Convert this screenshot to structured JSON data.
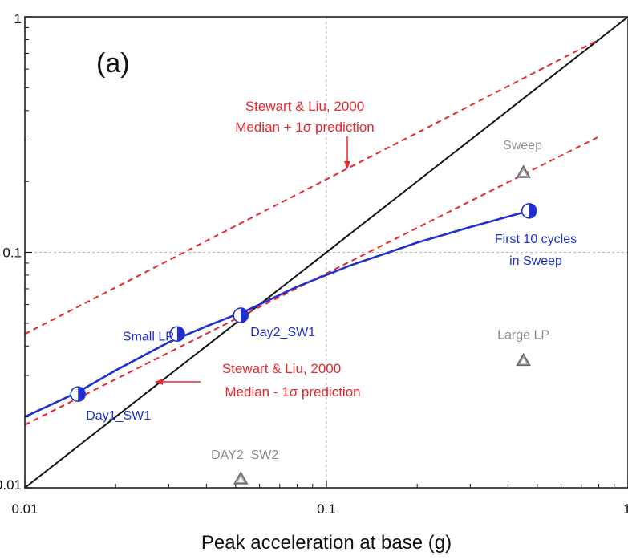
{
  "chart_data": {
    "type": "scatter",
    "panel_label": "(a)",
    "xlabel": "Peak acceleration at base (g)",
    "ylabel": "",
    "xscale": "log",
    "yscale": "log",
    "xlim": [
      0.01,
      1
    ],
    "ylim": [
      0.01,
      1
    ],
    "x_ticks": [
      {
        "value": 0.01,
        "label": "0.01"
      },
      {
        "value": 0.1,
        "label": "0.1"
      },
      {
        "value": 1,
        "label": "1"
      }
    ],
    "y_ticks": [
      {
        "value": 0.01,
        "label": "0.01"
      },
      {
        "value": 0.1,
        "label": "0.1"
      },
      {
        "value": 1,
        "label": "1"
      }
    ],
    "grid": "dotted at 0.1",
    "lines": [
      {
        "kind": "one_to_one",
        "color": "#111111",
        "style": "solid",
        "points": [
          [
            0.01,
            0.01
          ],
          [
            1,
            1
          ]
        ]
      },
      {
        "kind": "stewart_liu_plus",
        "color": "#e8262b",
        "style": "dashed",
        "points": [
          [
            0.01,
            0.045
          ],
          [
            0.8,
            0.8
          ]
        ]
      },
      {
        "kind": "stewart_liu_minus",
        "color": "#e8262b",
        "style": "dashed",
        "points": [
          [
            0.01,
            0.0185
          ],
          [
            0.8,
            0.31
          ]
        ]
      },
      {
        "kind": "first_10_cycles",
        "color": "#1f2fd0",
        "style": "solid",
        "points": [
          [
            0.01,
            0.02
          ],
          [
            0.015,
            0.0255
          ],
          [
            0.02,
            0.0315
          ],
          [
            0.03,
            0.0415
          ],
          [
            0.04,
            0.0485
          ],
          [
            0.055,
            0.057
          ],
          [
            0.08,
            0.0715
          ],
          [
            0.12,
            0.088
          ],
          [
            0.2,
            0.11
          ],
          [
            0.3,
            0.128
          ],
          [
            0.47,
            0.15
          ]
        ]
      }
    ],
    "series": [
      {
        "marker": "half-filled-circle",
        "color": "#1f2fd0",
        "points": [
          {
            "x": 0.015,
            "y": 0.025,
            "label": "Day1_SW1"
          },
          {
            "x": 0.032,
            "y": 0.045,
            "label": "Small LP"
          },
          {
            "x": 0.052,
            "y": 0.054,
            "label": "Day2_SW1"
          }
        ]
      },
      {
        "marker": "half-filled-circle",
        "color": "#1f2fd0",
        "points": [
          {
            "x": 0.47,
            "y": 0.15,
            "label": ""
          }
        ]
      },
      {
        "marker": "triangle",
        "color": "#8c8c8c",
        "points": [
          {
            "x": 0.45,
            "y": 0.22,
            "label": "Sweep"
          },
          {
            "x": 0.45,
            "y": 0.035,
            "label": "Large LP"
          },
          {
            "x": 0.052,
            "y": 0.011,
            "label": "DAY2_SW2"
          }
        ]
      }
    ],
    "annotations": [
      {
        "lines": [
          "Stewart & Liu, 2000",
          "Median + 1σ prediction"
        ],
        "color": "#e8262b",
        "arrow": "down",
        "arrow_to": [
          0.11,
          0.21
        ]
      },
      {
        "lines": [
          "Stewart & Liu, 2000",
          "Median - 1σ prediction"
        ],
        "color": "#e8262b",
        "arrow": "left",
        "arrow_to": [
          0.022,
          0.0255
        ]
      },
      {
        "lines": [
          "First 10 cycles",
          "in Sweep"
        ],
        "color": "#1f2fd0",
        "arrow": "none"
      }
    ]
  }
}
